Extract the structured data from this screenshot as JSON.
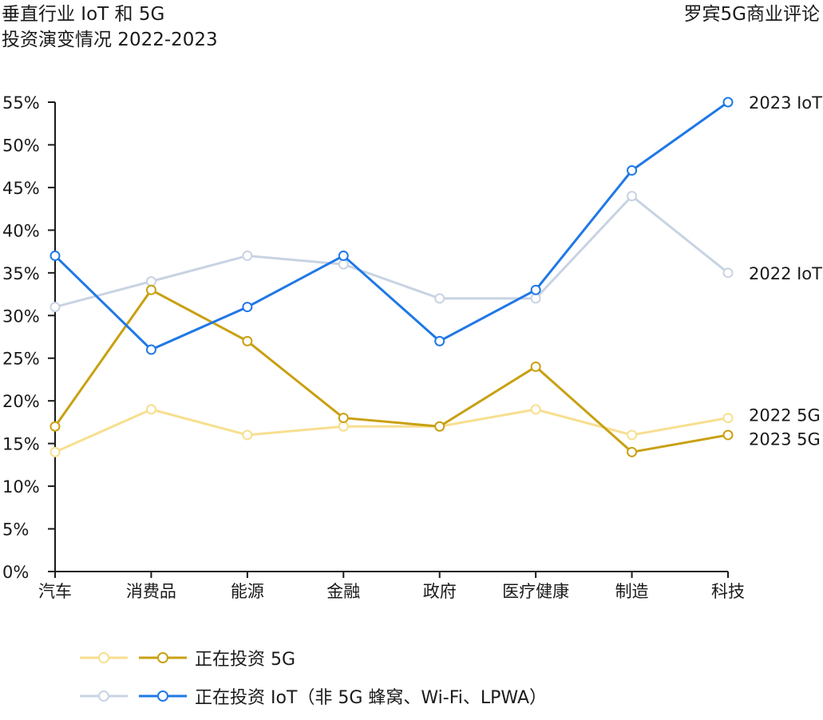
{
  "title": {
    "line1": "垂直行业 IoT 和 5G",
    "line2": "投资演变情况 2022-2023"
  },
  "source": "罗宾5G商业评论",
  "colors": {
    "iot_2022": "#c8d3e3",
    "iot_2023": "#1f78e6",
    "g5_2022": "#f7df8f",
    "g5_2023": "#c9a012"
  },
  "chart_data": {
    "type": "line",
    "categories": [
      "汽车",
      "消费品",
      "能源",
      "金融",
      "政府",
      "医疗健康",
      "制造",
      "科技"
    ],
    "yticks": [
      "0%",
      "5%",
      "10%",
      "15%",
      "20%",
      "25%",
      "30%",
      "35%",
      "40%",
      "45%",
      "50%",
      "55%"
    ],
    "ylim": [
      0,
      55
    ],
    "series": [
      {
        "name": "2022 IoT",
        "color_key": "iot_2022",
        "values": [
          31,
          34,
          37,
          36,
          32,
          32,
          44,
          35
        ]
      },
      {
        "name": "2022 5G",
        "color_key": "g5_2022",
        "values": [
          14,
          19,
          16,
          17,
          17,
          19,
          16,
          18
        ]
      },
      {
        "name": "2023 5G",
        "color_key": "g5_2023",
        "values": [
          17,
          33,
          27,
          18,
          17,
          24,
          14,
          16
        ]
      },
      {
        "name": "2023 IoT",
        "color_key": "iot_2023",
        "values": [
          37,
          26,
          31,
          37,
          27,
          33,
          47,
          55
        ]
      }
    ],
    "legend": [
      {
        "label": "正在投资 5G",
        "light": "g5_2022",
        "dark": "g5_2023"
      },
      {
        "label": "正在投资 IoT（非 5G 蜂窝、Wi-Fi、LPWA）",
        "light": "iot_2022",
        "dark": "iot_2023"
      }
    ]
  }
}
